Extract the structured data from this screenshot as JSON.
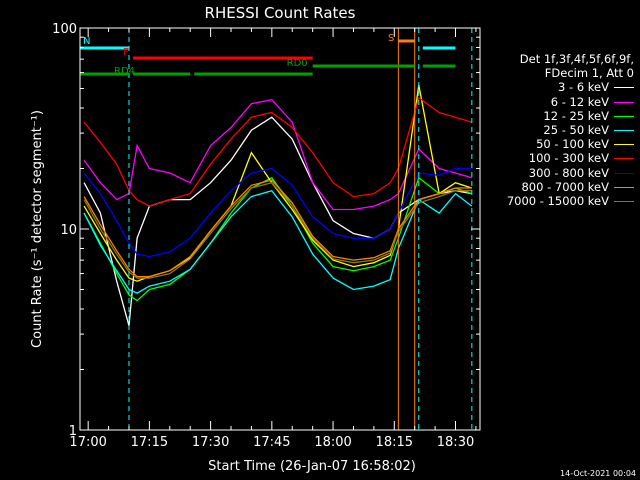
{
  "chart_data": {
    "type": "line",
    "title": "RHESSI Count Rates",
    "xlabel": "Start Time (26-Jan-07 16:58:02)",
    "ylabel": "Count Rate (s⁻¹ detector segment⁻¹)",
    "ylog": true,
    "ylim": [
      1,
      100
    ],
    "xlim": [
      "16:58",
      "18:36"
    ],
    "x_ticks": [
      "17:00",
      "17:15",
      "17:30",
      "17:45",
      "18:00",
      "18:15",
      "18:30"
    ],
    "y_ticks": [
      "1",
      "10",
      "100"
    ],
    "legend_header": [
      "Det 1f,3f,4f,5f,6f,9f,",
      "FDecim 1, Att 0"
    ],
    "legend_position": "right",
    "series": [
      {
        "name": "3 - 6 keV",
        "color": "#ffffff",
        "x": [
          "16:59",
          "17:03",
          "17:07",
          "17:10",
          "17:12",
          "17:15",
          "17:20",
          "17:25",
          "17:30",
          "17:35",
          "17:40",
          "17:45",
          "17:50",
          "17:55",
          "18:00",
          "18:05",
          "18:10",
          "18:14",
          "18:16",
          "18:21",
          "18:26",
          "18:30",
          "18:34"
        ],
        "y": [
          17,
          12,
          5.5,
          3.3,
          9,
          13,
          14,
          14,
          17,
          22,
          31,
          36,
          28,
          17,
          11,
          9.5,
          9,
          10,
          12,
          14,
          15,
          15.5,
          15
        ]
      },
      {
        "name": "6 - 12 keV",
        "color": "#ff00ff",
        "x": [
          "16:59",
          "17:03",
          "17:07",
          "17:10",
          "17:12",
          "17:15",
          "17:20",
          "17:25",
          "17:30",
          "17:35",
          "17:40",
          "17:45",
          "17:50",
          "17:55",
          "18:00",
          "18:05",
          "18:10",
          "18:14",
          "18:16",
          "18:21",
          "18:26",
          "18:30",
          "18:34"
        ],
        "y": [
          22,
          17,
          14,
          15,
          26,
          20,
          19,
          17,
          26,
          32,
          42,
          44,
          34,
          17,
          12.5,
          12.5,
          13,
          14,
          15,
          25,
          20,
          19,
          18
        ]
      },
      {
        "name": "12 - 25 keV",
        "color": "#00ff00",
        "x": [
          "16:59",
          "17:03",
          "17:07",
          "17:10",
          "17:12",
          "17:15",
          "17:20",
          "17:25",
          "17:30",
          "17:35",
          "17:40",
          "17:45",
          "17:50",
          "17:55",
          "18:00",
          "18:05",
          "18:10",
          "18:14",
          "18:16",
          "18:21",
          "18:26",
          "18:30",
          "18:34"
        ],
        "y": [
          12,
          8.5,
          6,
          4.7,
          4.4,
          5,
          5.3,
          6.3,
          8.5,
          12,
          16,
          18,
          13,
          8.5,
          6.5,
          6.2,
          6.5,
          7,
          9,
          18,
          15,
          16,
          15
        ]
      },
      {
        "name": "25 - 50 keV",
        "color": "#00ffff",
        "x": [
          "16:59",
          "17:03",
          "17:07",
          "17:10",
          "17:12",
          "17:15",
          "17:20",
          "17:25",
          "17:30",
          "17:35",
          "17:40",
          "17:45",
          "17:50",
          "17:55",
          "18:00",
          "18:05",
          "18:10",
          "18:14",
          "18:16",
          "18:21",
          "18:26",
          "18:30",
          "18:34"
        ],
        "y": [
          12,
          8.3,
          6.2,
          5,
          4.8,
          5.2,
          5.5,
          6.3,
          8.5,
          11.5,
          14.5,
          15.5,
          11.5,
          7.5,
          5.7,
          5,
          5.2,
          5.6,
          8,
          14,
          12,
          15,
          13
        ]
      },
      {
        "name": "50 - 100 keV",
        "color": "#ffff00",
        "x": [
          "16:59",
          "17:03",
          "17:07",
          "17:10",
          "17:12",
          "17:15",
          "17:20",
          "17:25",
          "17:30",
          "17:35",
          "17:40",
          "17:45",
          "17:50",
          "17:55",
          "18:00",
          "18:05",
          "18:10",
          "18:14",
          "18:16",
          "18:21",
          "18:26",
          "18:30",
          "18:34"
        ],
        "y": [
          13,
          9.5,
          7,
          5.7,
          5.5,
          5.8,
          6.2,
          7.2,
          9.8,
          13,
          24,
          17,
          12.5,
          8.8,
          7,
          6.5,
          6.8,
          7.4,
          10,
          52,
          15,
          17,
          16
        ]
      },
      {
        "name": "100 - 300 keV",
        "color": "#ff0000",
        "x": [
          "16:59",
          "17:03",
          "17:07",
          "17:10",
          "17:12",
          "17:15",
          "17:20",
          "17:25",
          "17:30",
          "17:35",
          "17:40",
          "17:45",
          "17:50",
          "17:55",
          "18:00",
          "18:05",
          "18:10",
          "18:14",
          "18:16",
          "18:21",
          "18:26",
          "18:30",
          "18:34"
        ],
        "y": [
          34,
          27,
          21,
          15.5,
          14,
          13,
          14,
          15,
          21,
          28,
          36,
          38,
          32,
          24,
          17,
          14.5,
          15,
          17,
          20,
          45,
          38,
          36,
          34
        ]
      },
      {
        "name": "300 - 800 keV",
        "color": "#0000ff",
        "x": [
          "16:59",
          "17:03",
          "17:07",
          "17:10",
          "17:12",
          "17:15",
          "17:20",
          "17:25",
          "17:30",
          "17:35",
          "17:40",
          "17:45",
          "17:50",
          "17:55",
          "18:00",
          "18:05",
          "18:10",
          "18:14",
          "18:16",
          "18:21",
          "18:26",
          "18:30",
          "18:34"
        ],
        "y": [
          19,
          15,
          11,
          8.5,
          7.5,
          7.3,
          7.7,
          9,
          12,
          15.5,
          19,
          20,
          16.5,
          11.5,
          9.5,
          9,
          9,
          10,
          12,
          19,
          18.5,
          20,
          20
        ]
      },
      {
        "name": "800 - 7000 keV",
        "color": "#ff8000",
        "x": [
          "16:59",
          "17:03",
          "17:07",
          "17:10",
          "17:12",
          "17:15",
          "17:20",
          "17:25",
          "17:30",
          "17:35",
          "17:40",
          "17:45",
          "17:50",
          "17:55",
          "18:00",
          "18:05",
          "18:10",
          "18:14",
          "18:16",
          "18:21",
          "18:26",
          "18:30",
          "18:34"
        ],
        "y": [
          14.5,
          10.5,
          7.8,
          6.3,
          5.8,
          5.8,
          6.2,
          7.3,
          9.8,
          13,
          16.5,
          17.5,
          13.5,
          9.2,
          7.3,
          7,
          7.2,
          7.8,
          10,
          14,
          15,
          16,
          16
        ]
      },
      {
        "name": "7000 - 15000 keV",
        "color": "#8b7a10",
        "x": [
          "16:59",
          "17:03",
          "17:07",
          "17:10",
          "17:12",
          "17:15",
          "17:20",
          "17:25",
          "17:30",
          "17:35",
          "17:40",
          "17:45",
          "17:50",
          "17:55",
          "18:00",
          "18:05",
          "18:10",
          "18:14",
          "18:16",
          "18:21",
          "18:26",
          "18:30",
          "18:34"
        ],
        "y": [
          14,
          10,
          7.5,
          6.1,
          5.7,
          5.7,
          6,
          7.1,
          9.5,
          12.6,
          16,
          17,
          13,
          9,
          7.1,
          6.8,
          7,
          7.6,
          9.7,
          13.5,
          14.5,
          15.5,
          15.5
        ]
      }
    ],
    "state_bars": [
      {
        "label": "N",
        "color": "#00ffff",
        "segments": [
          [
            "16:58",
            "17:10"
          ],
          [
            "18:22",
            "18:30"
          ]
        ]
      },
      {
        "label": "F",
        "color": "#ff0000",
        "segments": [
          [
            "17:11",
            "17:55"
          ]
        ]
      },
      {
        "label": "S",
        "color": "#ff8000",
        "segments": [
          [
            "18:16",
            "18:20"
          ]
        ]
      },
      {
        "label": "RD0",
        "color": "#00a000",
        "segments": [
          [
            "17:55",
            "18:20"
          ],
          [
            "18:22",
            "18:30"
          ]
        ]
      },
      {
        "label": "RD4",
        "color": "#00a000",
        "segments": [
          [
            "16:58",
            "17:10"
          ],
          [
            "17:11",
            "17:25"
          ],
          [
            "17:26",
            "17:55"
          ]
        ]
      }
    ],
    "vertical_markers": [
      {
        "time": "17:10",
        "color": "#00ffff",
        "style": "dashed"
      },
      {
        "time": "18:16",
        "color": "#ff8000",
        "style": "solid"
      },
      {
        "time": "18:20",
        "color": "#ff8000",
        "style": "solid"
      },
      {
        "time": "18:21",
        "color": "#00ffff",
        "style": "dashed"
      },
      {
        "time": "18:34",
        "color": "#00ffff",
        "style": "dashed"
      }
    ]
  },
  "timestamp": "14-Oct-2021 00:04"
}
